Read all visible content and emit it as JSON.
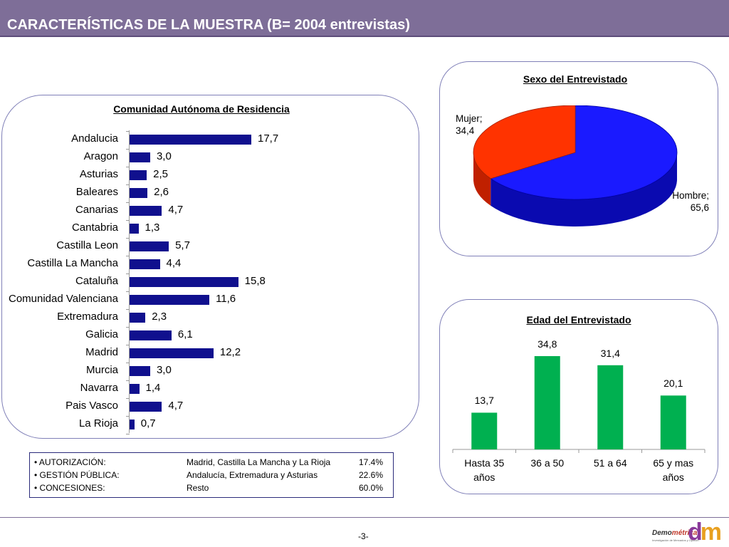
{
  "header": {
    "title": "CARACTERÍSTICAS DE LA MUESTRA (B= 2004 entrevistas)"
  },
  "colors": {
    "header": "#7e6e98",
    "bar": "#10108e",
    "pie_hombre": "#1a1aff",
    "pie_mujer": "#ff3300",
    "column": "#00b050",
    "panel_border": "#8080b8"
  },
  "chart_data": [
    {
      "type": "bar",
      "orientation": "horizontal",
      "title": "Comunidad Autónoma de Residencia",
      "categories": [
        "Andalucia",
        "Aragon",
        "Asturias",
        "Baleares",
        "Canarias",
        "Cantabria",
        "Castilla Leon",
        "Castilla La Mancha",
        "Cataluña",
        "Comunidad Valenciana",
        "Extremadura",
        "Galicia",
        "Madrid",
        "Murcia",
        "Navarra",
        "Pais Vasco",
        "La Rioja"
      ],
      "values": [
        17.7,
        3.0,
        2.5,
        2.6,
        4.7,
        1.3,
        5.7,
        4.4,
        15.8,
        11.6,
        2.3,
        6.1,
        12.2,
        3.0,
        1.4,
        4.7,
        0.7
      ],
      "value_labels": [
        "17,7",
        "3,0",
        "2,5",
        "2,6",
        "4,7",
        "1,3",
        "5,7",
        "4,4",
        "15,8",
        "11,6",
        "2,3",
        "6,1",
        "12,2",
        "3,0",
        "1,4",
        "4,7",
        "0,7"
      ],
      "xlim": [
        0,
        20
      ]
    },
    {
      "type": "pie",
      "title": "Sexo del Entrevistado",
      "style": "3d",
      "slices": [
        {
          "name": "Hombre",
          "value": 65.6,
          "label": "Hombre;",
          "value_label": "65,6",
          "color": "#1a1aff"
        },
        {
          "name": "Mujer",
          "value": 34.4,
          "label": "Mujer;",
          "value_label": "34,4",
          "color": "#ff3300"
        }
      ]
    },
    {
      "type": "bar",
      "orientation": "vertical",
      "title": "Edad del Entrevistado",
      "categories": [
        "Hasta 35 años",
        "36 a 50",
        "51 a 64",
        "65 y mas años"
      ],
      "category_lines": [
        [
          "Hasta 35",
          "años"
        ],
        [
          "36 a 50",
          ""
        ],
        [
          "51 a 64",
          ""
        ],
        [
          "65 y mas",
          "años"
        ]
      ],
      "values": [
        13.7,
        34.8,
        31.4,
        20.1
      ],
      "value_labels": [
        "13,7",
        "34,8",
        "31,4",
        "20,1"
      ],
      "ylim": [
        0,
        40
      ]
    }
  ],
  "legend": {
    "rows": [
      {
        "label": "• AUTORIZACIÓN:",
        "regions": "Madrid, Castilla La Mancha y La Rioja",
        "pct": "17.4%"
      },
      {
        "label": "• GESTIÓN PÚBLICA:",
        "regions": "Andalucía, Extremadura y Asturias",
        "pct": "22.6%"
      },
      {
        "label": "• CONCESIONES:",
        "regions": "Resto",
        "pct": "60.0%"
      }
    ]
  },
  "footer": {
    "page": "-3-",
    "logo_text_a": "Demo",
    "logo_text_b": "métrica",
    "logo_sub": "Investigación de Mercados y Opinión",
    "logo_mark_a": "d",
    "logo_mark_b": "m"
  }
}
